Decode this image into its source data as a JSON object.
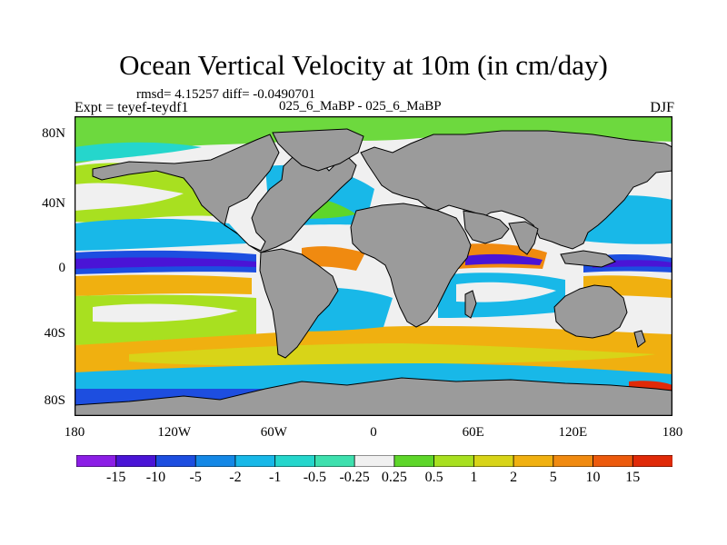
{
  "figure": {
    "title": "Ocean Vertical Velocity at 10m (in cm/day)",
    "stats": "rmsd= 4.15257 diff= -0.0490701",
    "subtitle": "025_6_MaBP - 025_6_MaBP",
    "experiment": "Expt = teyef-teydf1",
    "season": "DJF"
  },
  "axes": {
    "x_ticks": [
      "180",
      "120W",
      "60W",
      "0",
      "60E",
      "120E",
      "180"
    ],
    "y_ticks": [
      "80N",
      "40N",
      "0",
      "40S",
      "80S"
    ]
  },
  "colorbar": {
    "labels": [
      "-15",
      "-10",
      "-5",
      "-2",
      "-1",
      "-0.5",
      "-0.25",
      "0.25",
      "0.5",
      "1",
      "2",
      "5",
      "10",
      "15"
    ],
    "colors": [
      "#8c1ee6",
      "#4a14d6",
      "#1d4ee0",
      "#1488e6",
      "#18b8e8",
      "#25d6cc",
      "#3ee0ae",
      "#f0f0f0",
      "#5ed62a",
      "#a8e020",
      "#d8d418",
      "#f0b010",
      "#f08a10",
      "#ec5a0c",
      "#e02a08"
    ],
    "land_color": "#9b9b9b"
  }
}
